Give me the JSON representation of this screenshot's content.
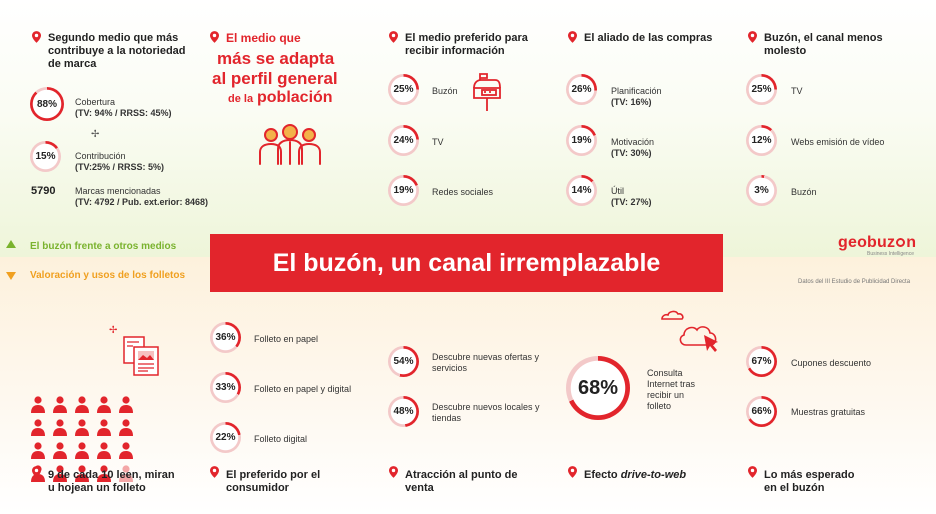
{
  "colors": {
    "accent": "#e2252c",
    "green": "#7ab32e",
    "orange": "#f0a020",
    "ring_track": "#f3c9c9"
  },
  "banner": {
    "title": "El buzón, un canal irremplazable"
  },
  "logo": {
    "text": "geobuz",
    "text2": "n",
    "tagline": "Business Intelligence"
  },
  "source_note": "Datos del III Estudio de Publicidad Directa",
  "tabs": [
    {
      "label": "El buzón frente a otros medios",
      "icon": "triangle-up-icon"
    },
    {
      "label": "Valoración y usos de los folletos",
      "icon": "triangle-down-icon"
    }
  ],
  "col1": {
    "title": "Segundo medio que más contribuye a la notoriedad de marca",
    "rows": [
      {
        "value": "88%",
        "pct": 88,
        "label": "Cobertura",
        "sub": "(TV: 94% / RRSS: 45%)"
      },
      {
        "value": "15%",
        "pct": 15,
        "label": "Contribución",
        "sub": "(TV:25% / RRSS: 5%)"
      },
      {
        "value": "5790",
        "label": "Marcas mencionadas",
        "sub": "(TV: 4792 / Pub. ext.erior: 8468)"
      }
    ]
  },
  "col2": {
    "line1": "El medio que",
    "line2": "más se adapta",
    "line3": "al perfil general",
    "line4a": "de la",
    "line4b": "población"
  },
  "col3": {
    "title": "El medio preferido para recibir información",
    "rows": [
      {
        "value": "25%",
        "pct": 25,
        "label": "Buzón"
      },
      {
        "value": "24%",
        "pct": 24,
        "label": "TV"
      },
      {
        "value": "19%",
        "pct": 19,
        "label": "Redes sociales"
      }
    ]
  },
  "col4": {
    "title": "El aliado de las compras",
    "rows": [
      {
        "value": "26%",
        "pct": 26,
        "label": "Planificación",
        "sub": "(TV: 16%)"
      },
      {
        "value": "19%",
        "pct": 19,
        "label": "Motivación",
        "sub": "(TV: 30%)"
      },
      {
        "value": "14%",
        "pct": 14,
        "label": "Útil",
        "sub": "(TV: 27%)"
      }
    ]
  },
  "col5": {
    "title": "Buzón, el canal menos molesto",
    "rows": [
      {
        "value": "25%",
        "pct": 25,
        "label": "TV"
      },
      {
        "value": "12%",
        "pct": 12,
        "label": "Webs emisión de vídeo"
      },
      {
        "value": "3%",
        "pct": 3,
        "label": "Buzón"
      }
    ]
  },
  "bottom": {
    "readers": {
      "caption": "9 de cada 10 leen, miran u hojean un folleto",
      "readers": 9,
      "total": 10
    },
    "formats": {
      "caption": "El preferido por el consumidor",
      "rows": [
        {
          "value": "36%",
          "pct": 36,
          "label": "Folleto en papel"
        },
        {
          "value": "33%",
          "pct": 33,
          "label": "Folleto en papel y digital"
        },
        {
          "value": "22%",
          "pct": 22,
          "label": "Folleto digital"
        }
      ]
    },
    "attraction": {
      "caption": "Atracción al punto de venta",
      "rows": [
        {
          "value": "54%",
          "pct": 54,
          "label": "Descubre nuevas ofertas y servicios"
        },
        {
          "value": "48%",
          "pct": 48,
          "label": "Descubre nuevos locales y tiendas"
        }
      ]
    },
    "web": {
      "caption_pre": "Efecto ",
      "caption_em": "drive-to-web",
      "value": "68%",
      "pct": 68,
      "label": "Consulta Internet tras recibir un folleto"
    },
    "expected": {
      "caption": "Lo más esperado en el buzón",
      "rows": [
        {
          "value": "67%",
          "pct": 67,
          "label": "Cupones descuento"
        },
        {
          "value": "66%",
          "pct": 66,
          "label": "Muestras gratuitas"
        }
      ]
    }
  }
}
